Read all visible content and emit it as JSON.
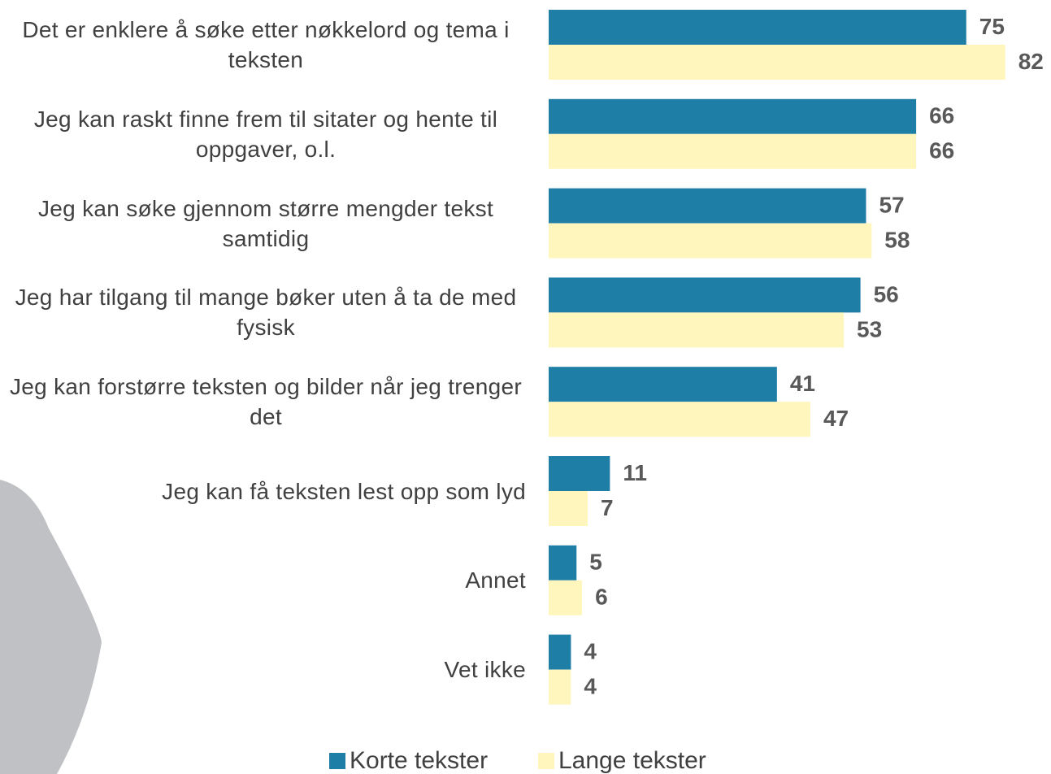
{
  "chart_data": {
    "type": "bar",
    "orientation": "horizontal",
    "categories": [
      "Det er enklere å søke etter nøkkelord og tema i teksten",
      "Jeg kan raskt finne frem til sitater og hente til oppgaver, o.l.",
      "Jeg kan søke gjennom større mengder tekst samtidig",
      "Jeg har tilgang til mange bøker uten å ta de med fysisk",
      "Jeg kan forstørre teksten og bilder når jeg trenger det",
      "Jeg kan få teksten lest opp som lyd",
      "Annet",
      "Vet ikke"
    ],
    "series": [
      {
        "name": "Korte tekster",
        "color": "#1f7ea6",
        "values": [
          75,
          66,
          57,
          56,
          41,
          11,
          5,
          4
        ]
      },
      {
        "name": "Lange tekster",
        "color": "#fff6bd",
        "values": [
          82,
          66,
          58,
          53,
          47,
          7,
          6,
          4
        ]
      }
    ],
    "legend": "bottom"
  }
}
